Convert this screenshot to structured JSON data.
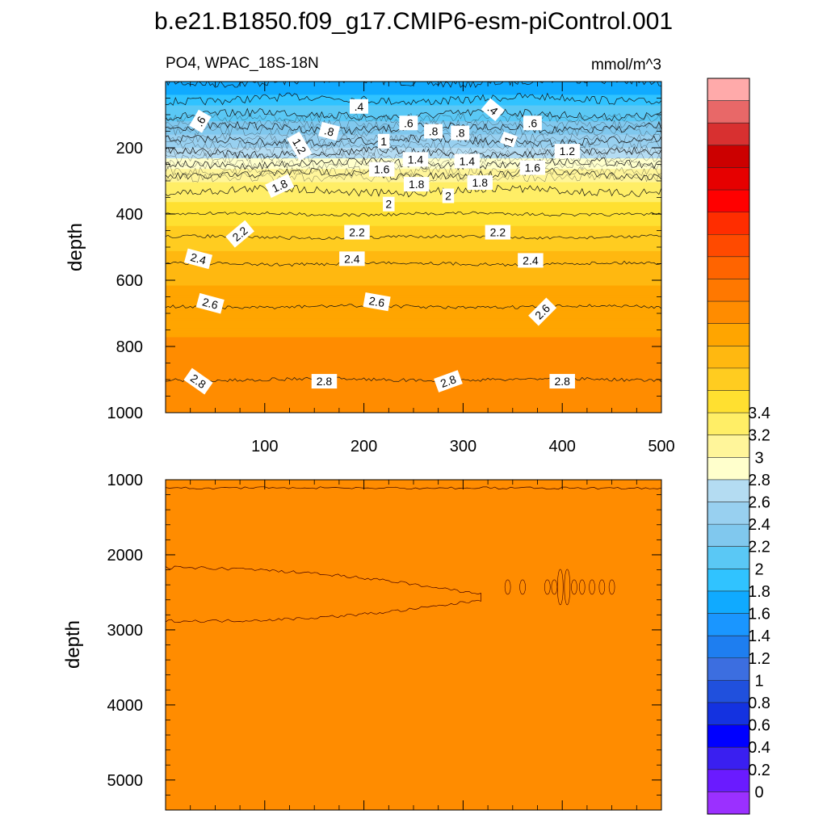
{
  "title": "b.e21.B1850.f09_g17.CMIP6-esm-piControl.001",
  "chart_data": [
    {
      "type": "heatmap",
      "panel": "upper",
      "left_label": "PO4, WPAC_18S-18N",
      "right_label": "mmol/m^3",
      "ylabel": "depth",
      "xlabel": "",
      "xlim": [
        0,
        500
      ],
      "ylim": [
        0,
        1000
      ],
      "y_reversed": true,
      "xticks": [
        100,
        200,
        300,
        400,
        500
      ],
      "yticks": [
        200,
        400,
        600,
        800,
        1000
      ],
      "depth_profile": [
        {
          "depth": 0,
          "value": 0.2
        },
        {
          "depth": 40,
          "value": 0.3
        },
        {
          "depth": 60,
          "value": 0.45
        },
        {
          "depth": 100,
          "value": 0.6
        },
        {
          "depth": 140,
          "value": 0.8
        },
        {
          "depth": 190,
          "value": 1.05
        },
        {
          "depth": 240,
          "value": 1.35
        },
        {
          "depth": 280,
          "value": 1.6
        },
        {
          "depth": 330,
          "value": 1.8
        },
        {
          "depth": 400,
          "value": 2.0
        },
        {
          "depth": 470,
          "value": 2.2
        },
        {
          "depth": 550,
          "value": 2.4
        },
        {
          "depth": 680,
          "value": 2.6
        },
        {
          "depth": 820,
          "value": 2.75
        },
        {
          "depth": 900,
          "value": 2.8
        },
        {
          "depth": 1000,
          "value": 2.88
        }
      ],
      "contour_labels": [
        {
          "text": ".6",
          "x": 35,
          "depth": 120,
          "angle": -60
        },
        {
          "text": ".4",
          "x": 195,
          "depth": 75,
          "angle": 0
        },
        {
          "text": ".4",
          "x": 330,
          "depth": 85,
          "angle": 40
        },
        {
          "text": ".6",
          "x": 245,
          "depth": 125,
          "angle": 0
        },
        {
          "text": ".6",
          "x": 370,
          "depth": 125,
          "angle": 0
        },
        {
          "text": ".8",
          "x": 165,
          "depth": 150,
          "angle": 15
        },
        {
          "text": ".8",
          "x": 270,
          "depth": 150,
          "angle": 0
        },
        {
          "text": ".8",
          "x": 297,
          "depth": 155,
          "angle": 0
        },
        {
          "text": "1",
          "x": 220,
          "depth": 180,
          "angle": 0
        },
        {
          "text": "1",
          "x": 346,
          "depth": 175,
          "angle": -70
        },
        {
          "text": "1.2",
          "x": 135,
          "depth": 195,
          "angle": 60
        },
        {
          "text": "1.2",
          "x": 405,
          "depth": 210,
          "angle": 0
        },
        {
          "text": "1.4",
          "x": 252,
          "depth": 235,
          "angle": 0
        },
        {
          "text": "1.4",
          "x": 304,
          "depth": 240,
          "angle": 0
        },
        {
          "text": "1.6",
          "x": 218,
          "depth": 265,
          "angle": 0
        },
        {
          "text": "1.6",
          "x": 370,
          "depth": 260,
          "angle": 0
        },
        {
          "text": "1.8",
          "x": 115,
          "depth": 315,
          "angle": -25
        },
        {
          "text": "1.8",
          "x": 253,
          "depth": 310,
          "angle": 0
        },
        {
          "text": "1.8",
          "x": 317,
          "depth": 305,
          "angle": 0
        },
        {
          "text": "2",
          "x": 225,
          "depth": 370,
          "angle": 0
        },
        {
          "text": "2",
          "x": 285,
          "depth": 345,
          "angle": 0
        },
        {
          "text": "2.2",
          "x": 75,
          "depth": 460,
          "angle": -40
        },
        {
          "text": "2.2",
          "x": 193,
          "depth": 455,
          "angle": 0
        },
        {
          "text": "2.2",
          "x": 335,
          "depth": 455,
          "angle": 0
        },
        {
          "text": "2.4",
          "x": 33,
          "depth": 535,
          "angle": 15
        },
        {
          "text": "2.4",
          "x": 188,
          "depth": 535,
          "angle": 0
        },
        {
          "text": "2.4",
          "x": 368,
          "depth": 540,
          "angle": 0
        },
        {
          "text": "2.6",
          "x": 45,
          "depth": 670,
          "angle": 15
        },
        {
          "text": "2.6",
          "x": 213,
          "depth": 665,
          "angle": 10
        },
        {
          "text": "2.6",
          "x": 380,
          "depth": 695,
          "angle": -45
        },
        {
          "text": "2.8",
          "x": 33,
          "depth": 905,
          "angle": 35
        },
        {
          "text": "2.8",
          "x": 160,
          "depth": 905,
          "angle": 0
        },
        {
          "text": "2.8",
          "x": 285,
          "depth": 905,
          "angle": -20
        },
        {
          "text": "2.8",
          "x": 400,
          "depth": 905,
          "angle": 0
        }
      ]
    },
    {
      "type": "heatmap",
      "panel": "lower",
      "ylabel": "depth",
      "xlim": [
        0,
        500
      ],
      "ylim": [
        1000,
        5400
      ],
      "y_reversed": true,
      "yticks": [
        1000,
        2000,
        3000,
        4000,
        5000
      ],
      "background_value": 2.9,
      "band_value": 2.82,
      "band": {
        "depth_top": 2200,
        "depth_bottom": 2850,
        "x_start": 0,
        "x_end": 320
      },
      "blobs_x": [
        345,
        360,
        385,
        392,
        398,
        405,
        412,
        420,
        430,
        440,
        450
      ]
    }
  ],
  "colorbar": {
    "levels": [
      0,
      0.2,
      0.4,
      0.6,
      0.8,
      1,
      1.2,
      1.4,
      1.6,
      1.8,
      2,
      2.2,
      2.4,
      2.6,
      2.8,
      3,
      3.2,
      3.4
    ],
    "labels": [
      "0",
      "0.2",
      "0.4",
      "0.6",
      "0.8",
      "1",
      "1.2",
      "1.4",
      "1.6",
      "1.8",
      "2",
      "2.2",
      "2.4",
      "2.6",
      "2.8",
      "3",
      "3.2",
      "3.4"
    ],
    "colors": [
      "#9b30ff",
      "#6a1bff",
      "#3a1ff0",
      "#0000ff",
      "#1432e0",
      "#2050dd",
      "#3c6ee0",
      "#1e7ef0",
      "#1a96ff",
      "#10aaff",
      "#30c3ff",
      "#5ac8f5",
      "#80c8ee",
      "#98d0f0",
      "#b4dcf2",
      "#ffffcc",
      "#fff59a",
      "#ffee66",
      "#ffe030",
      "#ffcc20",
      "#ffb810",
      "#ffa500",
      "#ff8c00",
      "#ff7800",
      "#ff6400",
      "#ff4a00",
      "#ff2d00",
      "#ff0000",
      "#e60000",
      "#cc0000",
      "#d83030",
      "#e86868",
      "#ffaaaa"
    ]
  }
}
